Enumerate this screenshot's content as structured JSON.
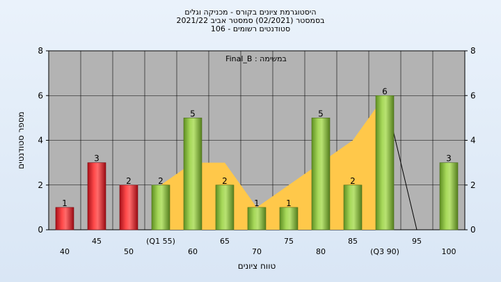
{
  "header": {
    "title_line1": "היסטוגרמת ציונים בקורס - מכניקה וגלים",
    "title_line2": "בסמסטר  (02/2021)  סמסטר אביב 2021/22",
    "title_line3": "סטודנטים רשומים - 106"
  },
  "colors": {
    "red_bar": "#e8262b",
    "green_bar": "#8cc43c",
    "area_fill": "#ffc84a",
    "plot_bg": "#b3b3b3",
    "page_bg": "#dde8f5"
  },
  "chart_data": {
    "type": "bar",
    "title": "היסטוגרמת ציונים בקורס - מכניקה וגלים",
    "annotation": "Final_B : במשימה",
    "xlabel": "טווח ציונים",
    "ylabel": "מספר סטודנטים",
    "ylim": [
      0,
      8
    ],
    "yticks": [
      0,
      2,
      4,
      6,
      8
    ],
    "grid": true,
    "categories": [
      "40",
      "45",
      "50",
      "(Q1 55)",
      "60",
      "65",
      "70",
      "75",
      "80",
      "85",
      "(Q3 90)",
      "95",
      "100"
    ],
    "values": [
      1,
      3,
      2,
      2,
      5,
      2,
      1,
      1,
      5,
      2,
      6,
      0,
      3
    ],
    "bar_colors": [
      "red",
      "red",
      "red",
      "green",
      "green",
      "green",
      "green",
      "green",
      "green",
      "green",
      "green",
      "green",
      "green"
    ],
    "area_series": {
      "x": [
        "(Q1 55)",
        "60",
        "65",
        "70",
        "75",
        "80",
        "85",
        "(Q3 90)"
      ],
      "values": [
        2,
        3,
        3,
        1,
        2,
        3,
        4,
        6
      ]
    },
    "line_series": {
      "x": [
        "(Q3 90)",
        "95"
      ],
      "values": [
        6,
        0
      ]
    }
  }
}
